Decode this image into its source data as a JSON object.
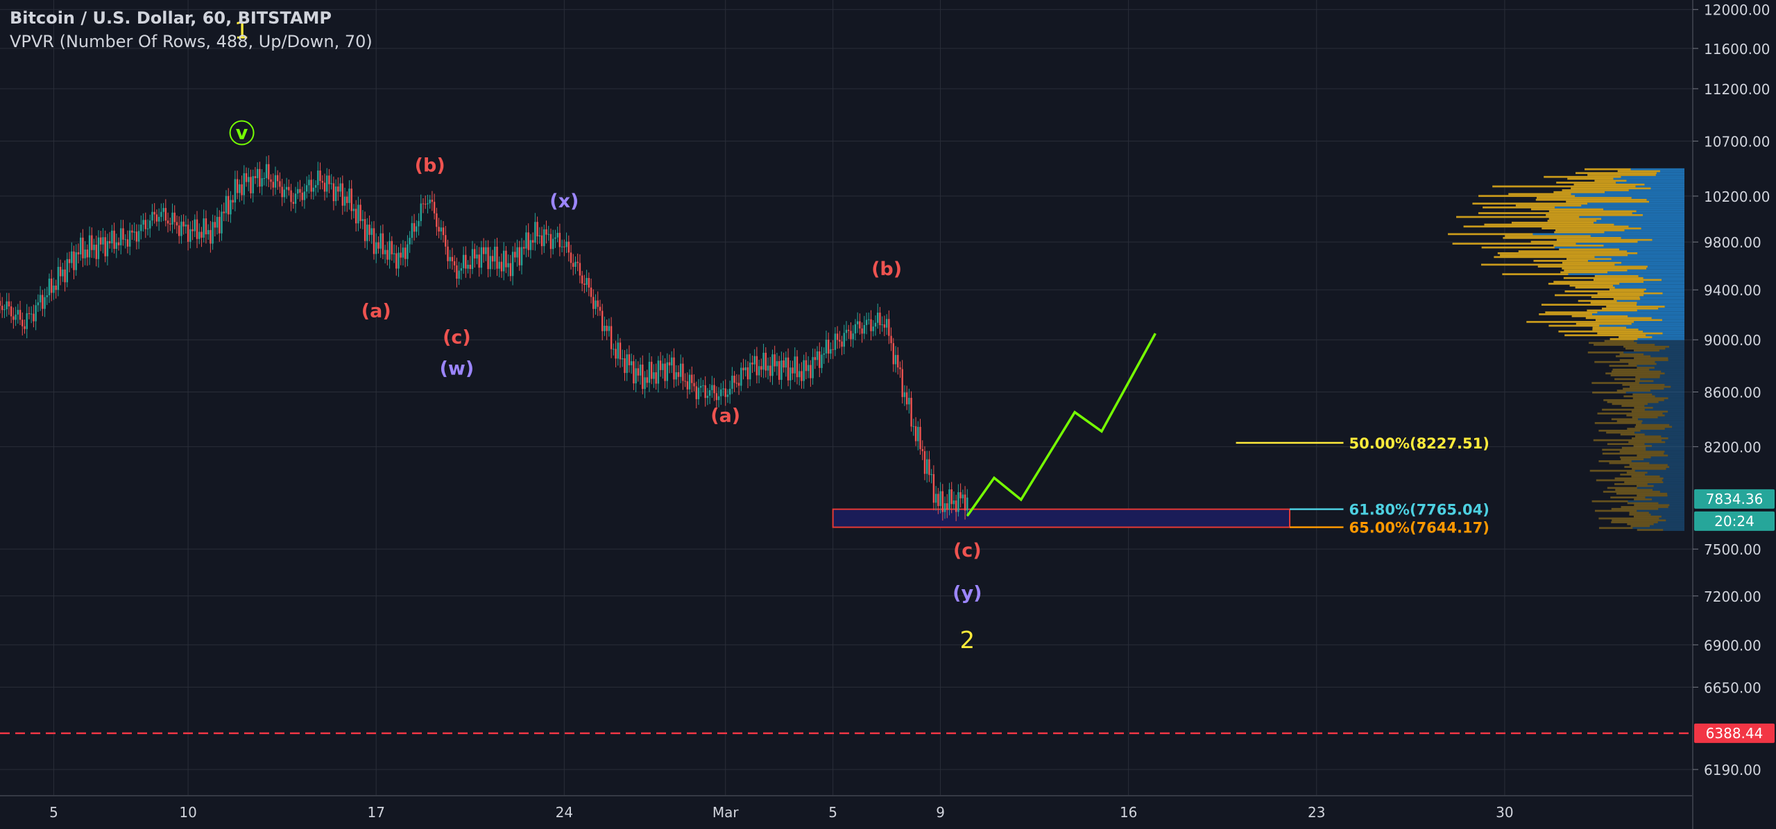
{
  "header": {
    "title": "Bitcoin / U.S. Dollar, 60, BITSTAMP",
    "indicator": "VPVR (Number Of Rows, 488, Up/Down, 70)"
  },
  "colors": {
    "background": "#131722",
    "grid": "#2a2e39",
    "up_candle": "#26a69a",
    "down_candle": "#ef5350",
    "forecast": "#76ff03",
    "red_label": "#ef5350",
    "purple_label": "#9c86ff",
    "yellow_label": "#ffeb3b",
    "cyan_label": "#4dd0e1",
    "orange_label": "#ff9800",
    "vpvr_up": "#1e6fb0",
    "vpvr_down": "#c99a1b",
    "support_dash": "#f23645"
  },
  "chart_data": {
    "type": "candlestick",
    "y_scale": "log",
    "yticks": [
      "12000.00",
      "11600.00",
      "11200.00",
      "10700.00",
      "10200.00",
      "9800.00",
      "9400.00",
      "9000.00",
      "8600.00",
      "8200.00",
      "7500.00",
      "7200.00",
      "6900.00",
      "6650.00",
      "6190.00"
    ],
    "xticks": [
      "5",
      "10",
      "17",
      "24",
      "Mar",
      "5",
      "9",
      "16",
      "23",
      "30"
    ],
    "x_dates": [
      "2020-02-05",
      "2020-02-10",
      "2020-02-17",
      "2020-02-24",
      "2020-03-01",
      "2020-03-05",
      "2020-03-09",
      "2020-03-16",
      "2020-03-23",
      "2020-03-30"
    ],
    "x_range": [
      "2020-02-03",
      "2020-04-06"
    ],
    "y_range": [
      6050,
      12100
    ],
    "price_path": [
      [
        "2020-02-03",
        9310
      ],
      [
        "2020-02-04",
        9130
      ],
      [
        "2020-02-05",
        9420
      ],
      [
        "2020-02-06",
        9720
      ],
      [
        "2020-02-08",
        9850
      ],
      [
        "2020-02-09",
        10050
      ],
      [
        "2020-02-10",
        9900
      ],
      [
        "2020-02-11",
        9890
      ],
      [
        "2020-02-12",
        10300
      ],
      [
        "2020-02-13",
        10390
      ],
      [
        "2020-02-14",
        10180
      ],
      [
        "2020-02-15",
        10350
      ],
      [
        "2020-02-16",
        10180
      ],
      [
        "2020-02-17",
        9800
      ],
      [
        "2020-02-18",
        9650
      ],
      [
        "2020-02-19",
        10200
      ],
      [
        "2020-02-20",
        9550
      ],
      [
        "2020-02-21",
        9700
      ],
      [
        "2020-02-22",
        9600
      ],
      [
        "2020-02-23",
        9870
      ],
      [
        "2020-02-24",
        9800
      ],
      [
        "2020-02-25",
        9400
      ],
      [
        "2020-02-26",
        8900
      ],
      [
        "2020-02-27",
        8700
      ],
      [
        "2020-02-28",
        8800
      ],
      [
        "2020-02-29",
        8620
      ],
      [
        "2020-03-01",
        8580
      ],
      [
        "2020-03-02",
        8800
      ],
      [
        "2020-03-03",
        8800
      ],
      [
        "2020-03-04",
        8750
      ],
      [
        "2020-03-05",
        8950
      ],
      [
        "2020-03-06",
        9100
      ],
      [
        "2020-03-07",
        9150
      ],
      [
        "2020-03-08",
        8400
      ],
      [
        "2020-03-09",
        7800
      ],
      [
        "2020-03-10",
        7834
      ]
    ],
    "forecast_path": [
      [
        "2020-03-10",
        7720
      ],
      [
        "2020-03-11",
        7980
      ],
      [
        "2020-03-12",
        7830
      ],
      [
        "2020-03-14",
        8450
      ],
      [
        "2020-03-15",
        8310
      ],
      [
        "2020-03-17",
        9050
      ]
    ],
    "wave_labels": [
      {
        "text": "1",
        "date": "2020-02-12",
        "price": 11700,
        "color": "yellow_label"
      },
      {
        "text": "v",
        "date": "2020-02-12",
        "price": 10720,
        "color": "forecast",
        "circled": true
      },
      {
        "text": "(a)",
        "date": "2020-02-17",
        "price": 9180,
        "color": "red_label"
      },
      {
        "text": "(b)",
        "date": "2020-02-19",
        "price": 10420,
        "color": "red_label"
      },
      {
        "text": "(c)",
        "date": "2020-02-20",
        "price": 8970,
        "color": "red_label"
      },
      {
        "text": "(w)",
        "date": "2020-02-20",
        "price": 8730,
        "color": "purple_label"
      },
      {
        "text": "(x)",
        "date": "2020-02-24",
        "price": 10100,
        "color": "purple_label"
      },
      {
        "text": "(a)",
        "date": "2020-03-01",
        "price": 8380,
        "color": "red_label"
      },
      {
        "text": "(b)",
        "date": "2020-03-07",
        "price": 9520,
        "color": "red_label"
      },
      {
        "text": "(c)",
        "date": "2020-03-10",
        "price": 7450,
        "color": "red_label"
      },
      {
        "text": "(y)",
        "date": "2020-03-10",
        "price": 7180,
        "color": "purple_label"
      },
      {
        "text": "2",
        "date": "2020-03-10",
        "price": 6880,
        "color": "yellow_label"
      }
    ],
    "fib_levels": [
      {
        "label": "50.00%(8227.51)",
        "price": 8227.51,
        "color": "yellow_label"
      },
      {
        "label": "61.80%(7765.04)",
        "price": 7765.04,
        "color": "cyan_label"
      },
      {
        "label": "65.00%(7644.17)",
        "price": 7644.17,
        "color": "orange_label"
      }
    ],
    "target_box": {
      "start": "2020-03-05",
      "end": "2020-03-22",
      "top": 7765.04,
      "bottom": 7644.17
    },
    "support_line": 6388.44,
    "last_price": 7834.36,
    "countdown": "20:24",
    "vpvr_range": [
      7620,
      10450
    ]
  }
}
